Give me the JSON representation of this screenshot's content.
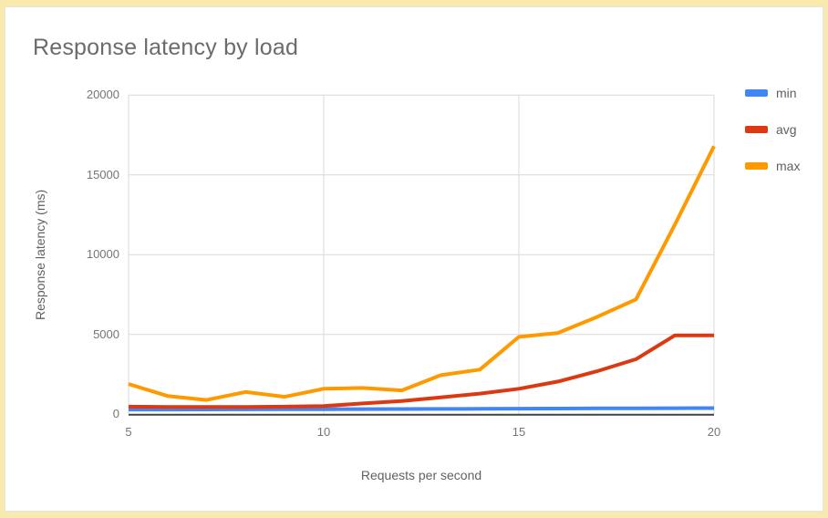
{
  "frame": {
    "border_color": "#f8e9ad"
  },
  "chart_data": {
    "type": "line",
    "title": "Response latency by load",
    "xlabel": "Requests per second",
    "ylabel": "Response latency (ms)",
    "x": [
      5,
      6,
      7,
      8,
      9,
      10,
      11,
      12,
      13,
      14,
      15,
      16,
      17,
      18,
      19,
      20
    ],
    "series": [
      {
        "name": "min",
        "color": "#4285f4",
        "values": [
          300,
          300,
          305,
          310,
          315,
          320,
          325,
          330,
          340,
          345,
          355,
          360,
          370,
          375,
          385,
          390
        ]
      },
      {
        "name": "avg",
        "color": "#dc3912",
        "values": [
          480,
          460,
          455,
          465,
          480,
          520,
          680,
          830,
          1060,
          1300,
          1600,
          2050,
          2700,
          3450,
          4950,
          4950
        ]
      },
      {
        "name": "max",
        "color": "#ff9900",
        "values": [
          1900,
          1150,
          900,
          1400,
          1100,
          1600,
          1650,
          1500,
          2450,
          2800,
          4850,
          5100,
          6100,
          7200,
          11900,
          16800
        ]
      }
    ],
    "xlim": [
      5,
      20
    ],
    "ylim": [
      0,
      20000
    ],
    "x_ticks": [
      5,
      10,
      15,
      20
    ],
    "y_ticks": [
      0,
      5000,
      10000,
      15000,
      20000
    ],
    "grid": true,
    "legend_position": "right"
  },
  "colors": {
    "gridline": "#d9d9d9",
    "axis_line": "#424242",
    "tick_text": "#757575",
    "axis_title_text": "#616161",
    "chart_title_text": "#6b6b6f"
  }
}
